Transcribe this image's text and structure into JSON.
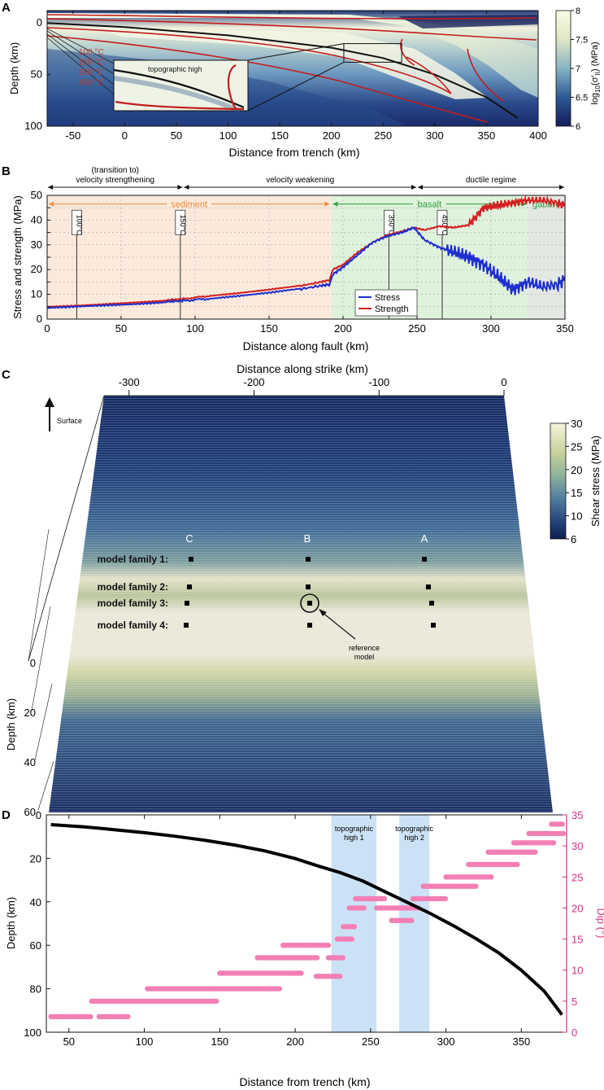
{
  "chart_data": [
    {
      "panel": "A",
      "type": "heatmap",
      "xlabel": "Distance from trench (km)",
      "ylabel": "Depth (km)",
      "xlim": [
        -75,
        400
      ],
      "ylim": [
        100,
        -12
      ],
      "xticks": [
        -50,
        0,
        50,
        100,
        150,
        200,
        250,
        300,
        350,
        400
      ],
      "yticks": [
        0,
        50,
        100
      ],
      "colorbar": {
        "label": "log10(σ'II) (MPa)",
        "ticks": [
          "8",
          "7.5",
          "7",
          "6.5",
          "6"
        ],
        "range": [
          6,
          8
        ]
      },
      "isotherms": [
        {
          "label": "100 °C",
          "color": "#c0392b"
        },
        {
          "label": "150 °C",
          "color": "#c0392b"
        },
        {
          "label": "350 °C",
          "color": "#c0392b"
        },
        {
          "label": "450 °C",
          "color": "#c0392b"
        }
      ],
      "inset_label": "topographic high",
      "slab_top": {
        "x": [
          -75,
          0,
          50,
          100,
          150,
          200,
          250,
          300,
          350,
          380
        ],
        "depth": [
          0,
          4,
          8,
          12,
          18,
          24,
          34,
          50,
          72,
          92
        ]
      },
      "zoom_box": {
        "x": [
          212,
          268
        ],
        "depth": [
          20,
          38
        ]
      }
    },
    {
      "panel": "B",
      "type": "line",
      "xlabel": "Distance along fault (km)",
      "ylabel": "Stress and strength (MPa)",
      "xlim": [
        0,
        350
      ],
      "ylim": [
        0,
        50
      ],
      "xticks": [
        0,
        50,
        100,
        150,
        200,
        250,
        300,
        350
      ],
      "yticks": [
        0,
        5,
        10,
        15,
        20,
        25,
        30,
        35,
        40,
        45,
        50
      ],
      "regimes": [
        {
          "label": "(transition to)\nvelocity strengthening",
          "line1": "(transition to)",
          "line2": "velocity strengthening",
          "from": 0,
          "to": 92
        },
        {
          "label": "velocity weakening",
          "from": 92,
          "to": 250
        },
        {
          "label": "ductile regime",
          "from": 250,
          "to": 350
        }
      ],
      "materials": [
        {
          "label": "sediment",
          "from": 0,
          "to": 192,
          "color": "#f08c3c",
          "fill": "#fbe9dc"
        },
        {
          "label": "basalt",
          "from": 192,
          "to": 325,
          "color": "#2e9e3c",
          "fill": "#def2dc"
        },
        {
          "label": "gabbro",
          "from": 325,
          "to": 350,
          "color": "#2e9e3c",
          "fill": "#e3e8e3"
        }
      ],
      "isotherm_markers": [
        {
          "label": "100°C",
          "x": 20
        },
        {
          "label": "150°C",
          "x": 90
        },
        {
          "label": "350°C",
          "x": 231
        },
        {
          "label": "450°C",
          "x": 267
        }
      ],
      "series": [
        {
          "name": "Stress",
          "color": "#1f2fd0",
          "x": [
            0,
            20,
            40,
            60,
            80,
            92,
            110,
            130,
            150,
            170,
            185,
            191,
            193,
            200,
            210,
            220,
            230,
            240,
            248,
            255,
            265,
            275,
            285,
            295,
            305,
            315,
            325,
            335,
            345,
            350
          ],
          "values": [
            4.5,
            5.2,
            5.8,
            6.3,
            7,
            7.4,
            8.3,
            9.3,
            10.5,
            12,
            13.5,
            14,
            18,
            21,
            26,
            31,
            33.5,
            35,
            37,
            32,
            29,
            27,
            25,
            22,
            17,
            12,
            15,
            13,
            14,
            16
          ]
        },
        {
          "name": "Strength",
          "color": "#d42020",
          "x": [
            0,
            20,
            40,
            60,
            80,
            92,
            110,
            130,
            150,
            170,
            185,
            191,
            193,
            200,
            210,
            220,
            230,
            240,
            248,
            255,
            265,
            275,
            285,
            295,
            305,
            315,
            325,
            335,
            345,
            350
          ],
          "values": [
            5,
            5.5,
            6.2,
            6.9,
            7.6,
            8.2,
            9.4,
            10.5,
            11.8,
            13.3,
            15,
            15.8,
            20,
            22,
            27,
            31,
            34,
            35.5,
            37,
            36,
            37.5,
            37,
            38,
            45,
            46,
            47,
            48,
            48,
            47,
            46
          ]
        }
      ]
    },
    {
      "panel": "C",
      "type": "heatmap",
      "xlabel": "Distance along strike (km)",
      "ylabel": "Depth (km)",
      "xticks": [
        -300,
        -200,
        -100,
        0
      ],
      "yticks": [
        0,
        20,
        40,
        60
      ],
      "colorbar": {
        "label": "Shear stress (MPa)",
        "ticks": [
          "30",
          "25",
          "20",
          "15",
          "10",
          "6"
        ],
        "range": [
          6,
          30
        ]
      },
      "surface_label": "Surface",
      "columns": [
        "C",
        "B",
        "A"
      ],
      "families": [
        "model family 1:",
        "model family 2:",
        "model family 3:",
        "model family 4:"
      ],
      "reference_label": "reference\nmodel",
      "reference_line1": "reference",
      "reference_line2": "model"
    },
    {
      "panel": "D",
      "type": "scatter",
      "xlabel": "Distance from trench (km)",
      "ylabel": "Depth (km)",
      "y2label": "Dip (°)",
      "xlim": [
        35,
        380
      ],
      "ylim": [
        100,
        0
      ],
      "y2lim": [
        0,
        35
      ],
      "xticks": [
        50,
        100,
        150,
        200,
        250,
        300,
        350
      ],
      "yticks": [
        0,
        20,
        40,
        60,
        80,
        100
      ],
      "y2ticks": [
        0,
        5,
        10,
        15,
        20,
        25,
        30,
        35
      ],
      "highlights": [
        {
          "line1": "topographic",
          "line2": "high 1",
          "from": 224,
          "to": 254
        },
        {
          "line1": "topographic",
          "line2": "high 2",
          "from": 269,
          "to": 289
        }
      ],
      "depth_profile": {
        "x": [
          38,
          60,
          80,
          100,
          120,
          140,
          160,
          180,
          200,
          215,
          230,
          245,
          260,
          275,
          290,
          305,
          320,
          335,
          350,
          365,
          377
        ],
        "depth": [
          4.5,
          5.5,
          6.8,
          8.2,
          9.8,
          11.7,
          13.9,
          16.6,
          20.1,
          23.5,
          26.6,
          30.5,
          35.5,
          40.5,
          45.5,
          51,
          57,
          63.5,
          71.5,
          81,
          92
        ]
      },
      "dip_segments": [
        {
          "x0": 38,
          "x1": 65,
          "dip": 2.5
        },
        {
          "x0": 70,
          "x1": 90,
          "dip": 2.5
        },
        {
          "x0": 65,
          "x1": 148,
          "dip": 5
        },
        {
          "x0": 102,
          "x1": 190,
          "dip": 7
        },
        {
          "x0": 150,
          "x1": 205,
          "dip": 9.5
        },
        {
          "x0": 175,
          "x1": 215,
          "dip": 12
        },
        {
          "x0": 192,
          "x1": 222,
          "dip": 14
        },
        {
          "x0": 214,
          "x1": 230,
          "dip": 9
        },
        {
          "x0": 222,
          "x1": 232,
          "dip": 12
        },
        {
          "x0": 228,
          "x1": 238,
          "dip": 15
        },
        {
          "x0": 232,
          "x1": 240,
          "dip": 17
        },
        {
          "x0": 236,
          "x1": 246,
          "dip": 20
        },
        {
          "x0": 240,
          "x1": 260,
          "dip": 21.5
        },
        {
          "x0": 254,
          "x1": 266,
          "dip": 20
        },
        {
          "x0": 264,
          "x1": 278,
          "dip": 18
        },
        {
          "x0": 266,
          "x1": 282,
          "dip": 20
        },
        {
          "x0": 278,
          "x1": 300,
          "dip": 21.5
        },
        {
          "x0": 285,
          "x1": 320,
          "dip": 23.5
        },
        {
          "x0": 300,
          "x1": 330,
          "dip": 25
        },
        {
          "x0": 315,
          "x1": 348,
          "dip": 27
        },
        {
          "x0": 328,
          "x1": 360,
          "dip": 29
        },
        {
          "x0": 345,
          "x1": 372,
          "dip": 30.5
        },
        {
          "x0": 355,
          "x1": 378,
          "dip": 32
        },
        {
          "x0": 370,
          "x1": 378,
          "dip": 33.5
        }
      ]
    }
  ]
}
